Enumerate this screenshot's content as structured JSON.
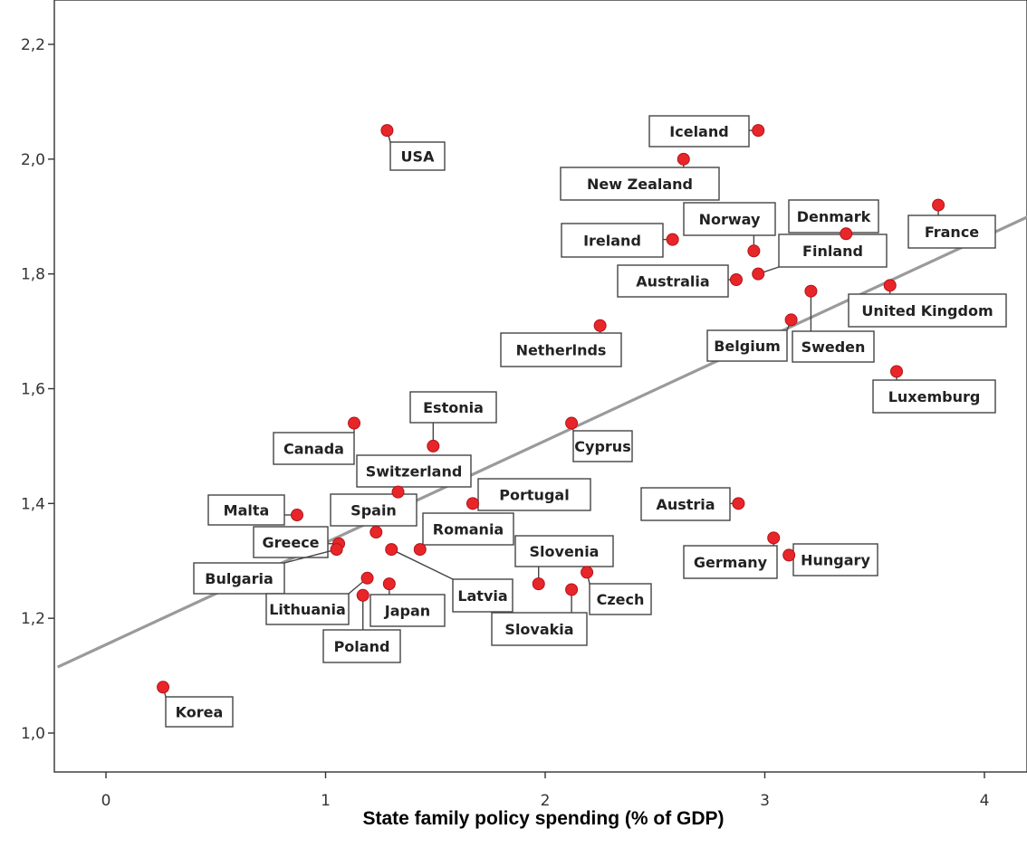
{
  "chart_data": {
    "type": "scatter",
    "xlabel": "State family policy spending (% of GDP)",
    "ylabel": "",
    "xlim": [
      -0.22,
      4.2
    ],
    "ylim": [
      0.93,
      2.28
    ],
    "x_ticks": [
      0,
      1,
      2,
      3,
      4
    ],
    "y_ticks": [
      1.0,
      1.2,
      1.4,
      1.6,
      1.8,
      2.0,
      2.2
    ],
    "x_tick_labels": [
      "0",
      "1",
      "2",
      "3",
      "4"
    ],
    "y_tick_labels": [
      "1,0",
      "1,2",
      "1,4",
      "1,6",
      "1,8",
      "2,0",
      "2,2"
    ],
    "grid": false,
    "point_color": "#e8262a",
    "fit_line_color": "#9a9a9a",
    "fit_line": {
      "x": [
        -0.22,
        4.2
      ],
      "y": [
        1.115,
        1.9
      ]
    },
    "points": [
      {
        "label": "USA",
        "x": 1.28,
        "y": 2.05
      },
      {
        "label": "Iceland",
        "x": 2.97,
        "y": 2.05
      },
      {
        "label": "New Zealand",
        "x": 2.63,
        "y": 2.0
      },
      {
        "label": "France",
        "x": 3.79,
        "y": 1.92
      },
      {
        "label": "Denmark",
        "x": 3.37,
        "y": 1.87
      },
      {
        "label": "Norway",
        "x": 2.95,
        "y": 1.84
      },
      {
        "label": "Ireland",
        "x": 2.58,
        "y": 1.86
      },
      {
        "label": "Finland",
        "x": 2.97,
        "y": 1.8
      },
      {
        "label": "Australia",
        "x": 2.87,
        "y": 1.79
      },
      {
        "label": "United Kingdom",
        "x": 3.57,
        "y": 1.78
      },
      {
        "label": "Belgium",
        "x": 3.12,
        "y": 1.72
      },
      {
        "label": "Sweden",
        "x": 3.21,
        "y": 1.77
      },
      {
        "label": "Netherlnds",
        "x": 2.25,
        "y": 1.71
      },
      {
        "label": "Luxemburg",
        "x": 3.6,
        "y": 1.63
      },
      {
        "label": "Estonia",
        "x": 1.49,
        "y": 1.5
      },
      {
        "label": "Canada",
        "x": 1.13,
        "y": 1.54
      },
      {
        "label": "Cyprus",
        "x": 2.12,
        "y": 1.54
      },
      {
        "label": "Switzerland",
        "x": 1.33,
        "y": 1.42
      },
      {
        "label": "Portugal",
        "x": 1.67,
        "y": 1.4
      },
      {
        "label": "Austria",
        "x": 2.88,
        "y": 1.4
      },
      {
        "label": "Malta",
        "x": 0.87,
        "y": 1.38
      },
      {
        "label": "Spain",
        "x": 1.23,
        "y": 1.35
      },
      {
        "label": "Romania",
        "x": 1.43,
        "y": 1.32
      },
      {
        "label": "Greece",
        "x": 1.06,
        "y": 1.33
      },
      {
        "label": "Bulgaria",
        "x": 1.05,
        "y": 1.32
      },
      {
        "label": "Latvia",
        "x": 1.3,
        "y": 1.32
      },
      {
        "label": "Slovenia",
        "x": 1.97,
        "y": 1.26
      },
      {
        "label": "Germany",
        "x": 3.04,
        "y": 1.34
      },
      {
        "label": "Hungary",
        "x": 3.11,
        "y": 1.31
      },
      {
        "label": "Czech",
        "x": 2.19,
        "y": 1.28
      },
      {
        "label": "Lithuania",
        "x": 1.19,
        "y": 1.27
      },
      {
        "label": "Japan",
        "x": 1.29,
        "y": 1.26
      },
      {
        "label": "Poland",
        "x": 1.17,
        "y": 1.24
      },
      {
        "label": "Slovakia",
        "x": 2.12,
        "y": 1.25
      },
      {
        "label": "Korea",
        "x": 0.26,
        "y": 1.08
      }
    ]
  }
}
